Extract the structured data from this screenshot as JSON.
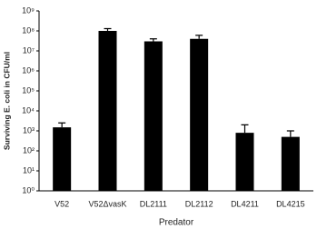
{
  "chart_data": {
    "type": "bar",
    "x_label": "Predator",
    "y_label": "Surviving E. coli in CFU/ml",
    "categories": [
      "V52",
      "V52ΔvasK",
      "DL2111",
      "DL2112",
      "DL4211",
      "DL4215"
    ],
    "values": [
      1500,
      100000000,
      30000000,
      40000000,
      800,
      500
    ],
    "errors": [
      1000,
      30000000,
      10000000,
      20000000,
      1200,
      500
    ],
    "color": "#000000",
    "log_scale": true,
    "grid": false,
    "ylim": [
      1,
      1000000000
    ],
    "yticks": [
      {
        "value": 1,
        "label": "10⁰"
      },
      {
        "value": 10,
        "label": "10¹"
      },
      {
        "value": 100,
        "label": "10²"
      },
      {
        "value": 1000,
        "label": "10³"
      },
      {
        "value": 10000,
        "label": "10⁴"
      },
      {
        "value": 100000,
        "label": "10⁵"
      },
      {
        "value": 1000000,
        "label": "10⁶"
      },
      {
        "value": 10000000,
        "label": "10⁷"
      },
      {
        "value": 100000000,
        "label": "10⁸"
      },
      {
        "value": 1000000000,
        "label": "10⁹"
      }
    ]
  }
}
